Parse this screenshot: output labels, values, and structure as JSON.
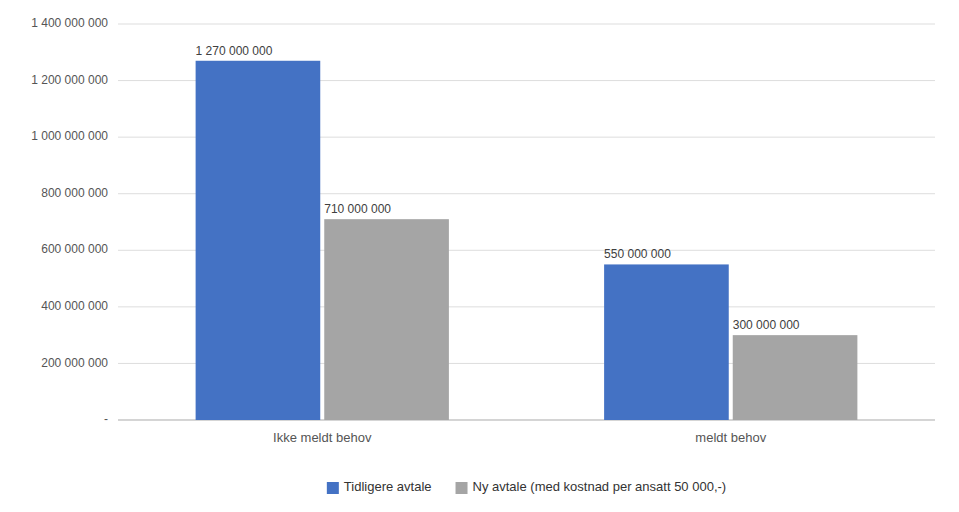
{
  "chart_data": {
    "type": "bar",
    "categories": [
      "Ikke meldt behov",
      "meldt behov"
    ],
    "series": [
      {
        "name": "Tidligere avtale",
        "color": "#4472C4",
        "values": [
          1270000000,
          550000000
        ],
        "value_labels": [
          "1 270 000 000",
          "550 000 000"
        ]
      },
      {
        "name": "Ny avtale (med kostnad per ansatt 50 000,-)",
        "color": "#A5A5A5",
        "values": [
          710000000,
          300000000
        ],
        "value_labels": [
          "710 000 000",
          "300 000 000"
        ]
      }
    ],
    "ylim": [
      0,
      1400000000
    ],
    "yticks": [
      {
        "value": 0,
        "label": "-"
      },
      {
        "value": 200000000,
        "label": "200 000 000"
      },
      {
        "value": 400000000,
        "label": "400 000 000"
      },
      {
        "value": 600000000,
        "label": "600 000 000"
      },
      {
        "value": 800000000,
        "label": "800 000 000"
      },
      {
        "value": 1000000000,
        "label": "1 000 000 000"
      },
      {
        "value": 1200000000,
        "label": "1 200 000 000"
      },
      {
        "value": 1400000000,
        "label": "1 400 000 000"
      }
    ],
    "grid": true,
    "data_labels": true,
    "legend": "bottom"
  }
}
